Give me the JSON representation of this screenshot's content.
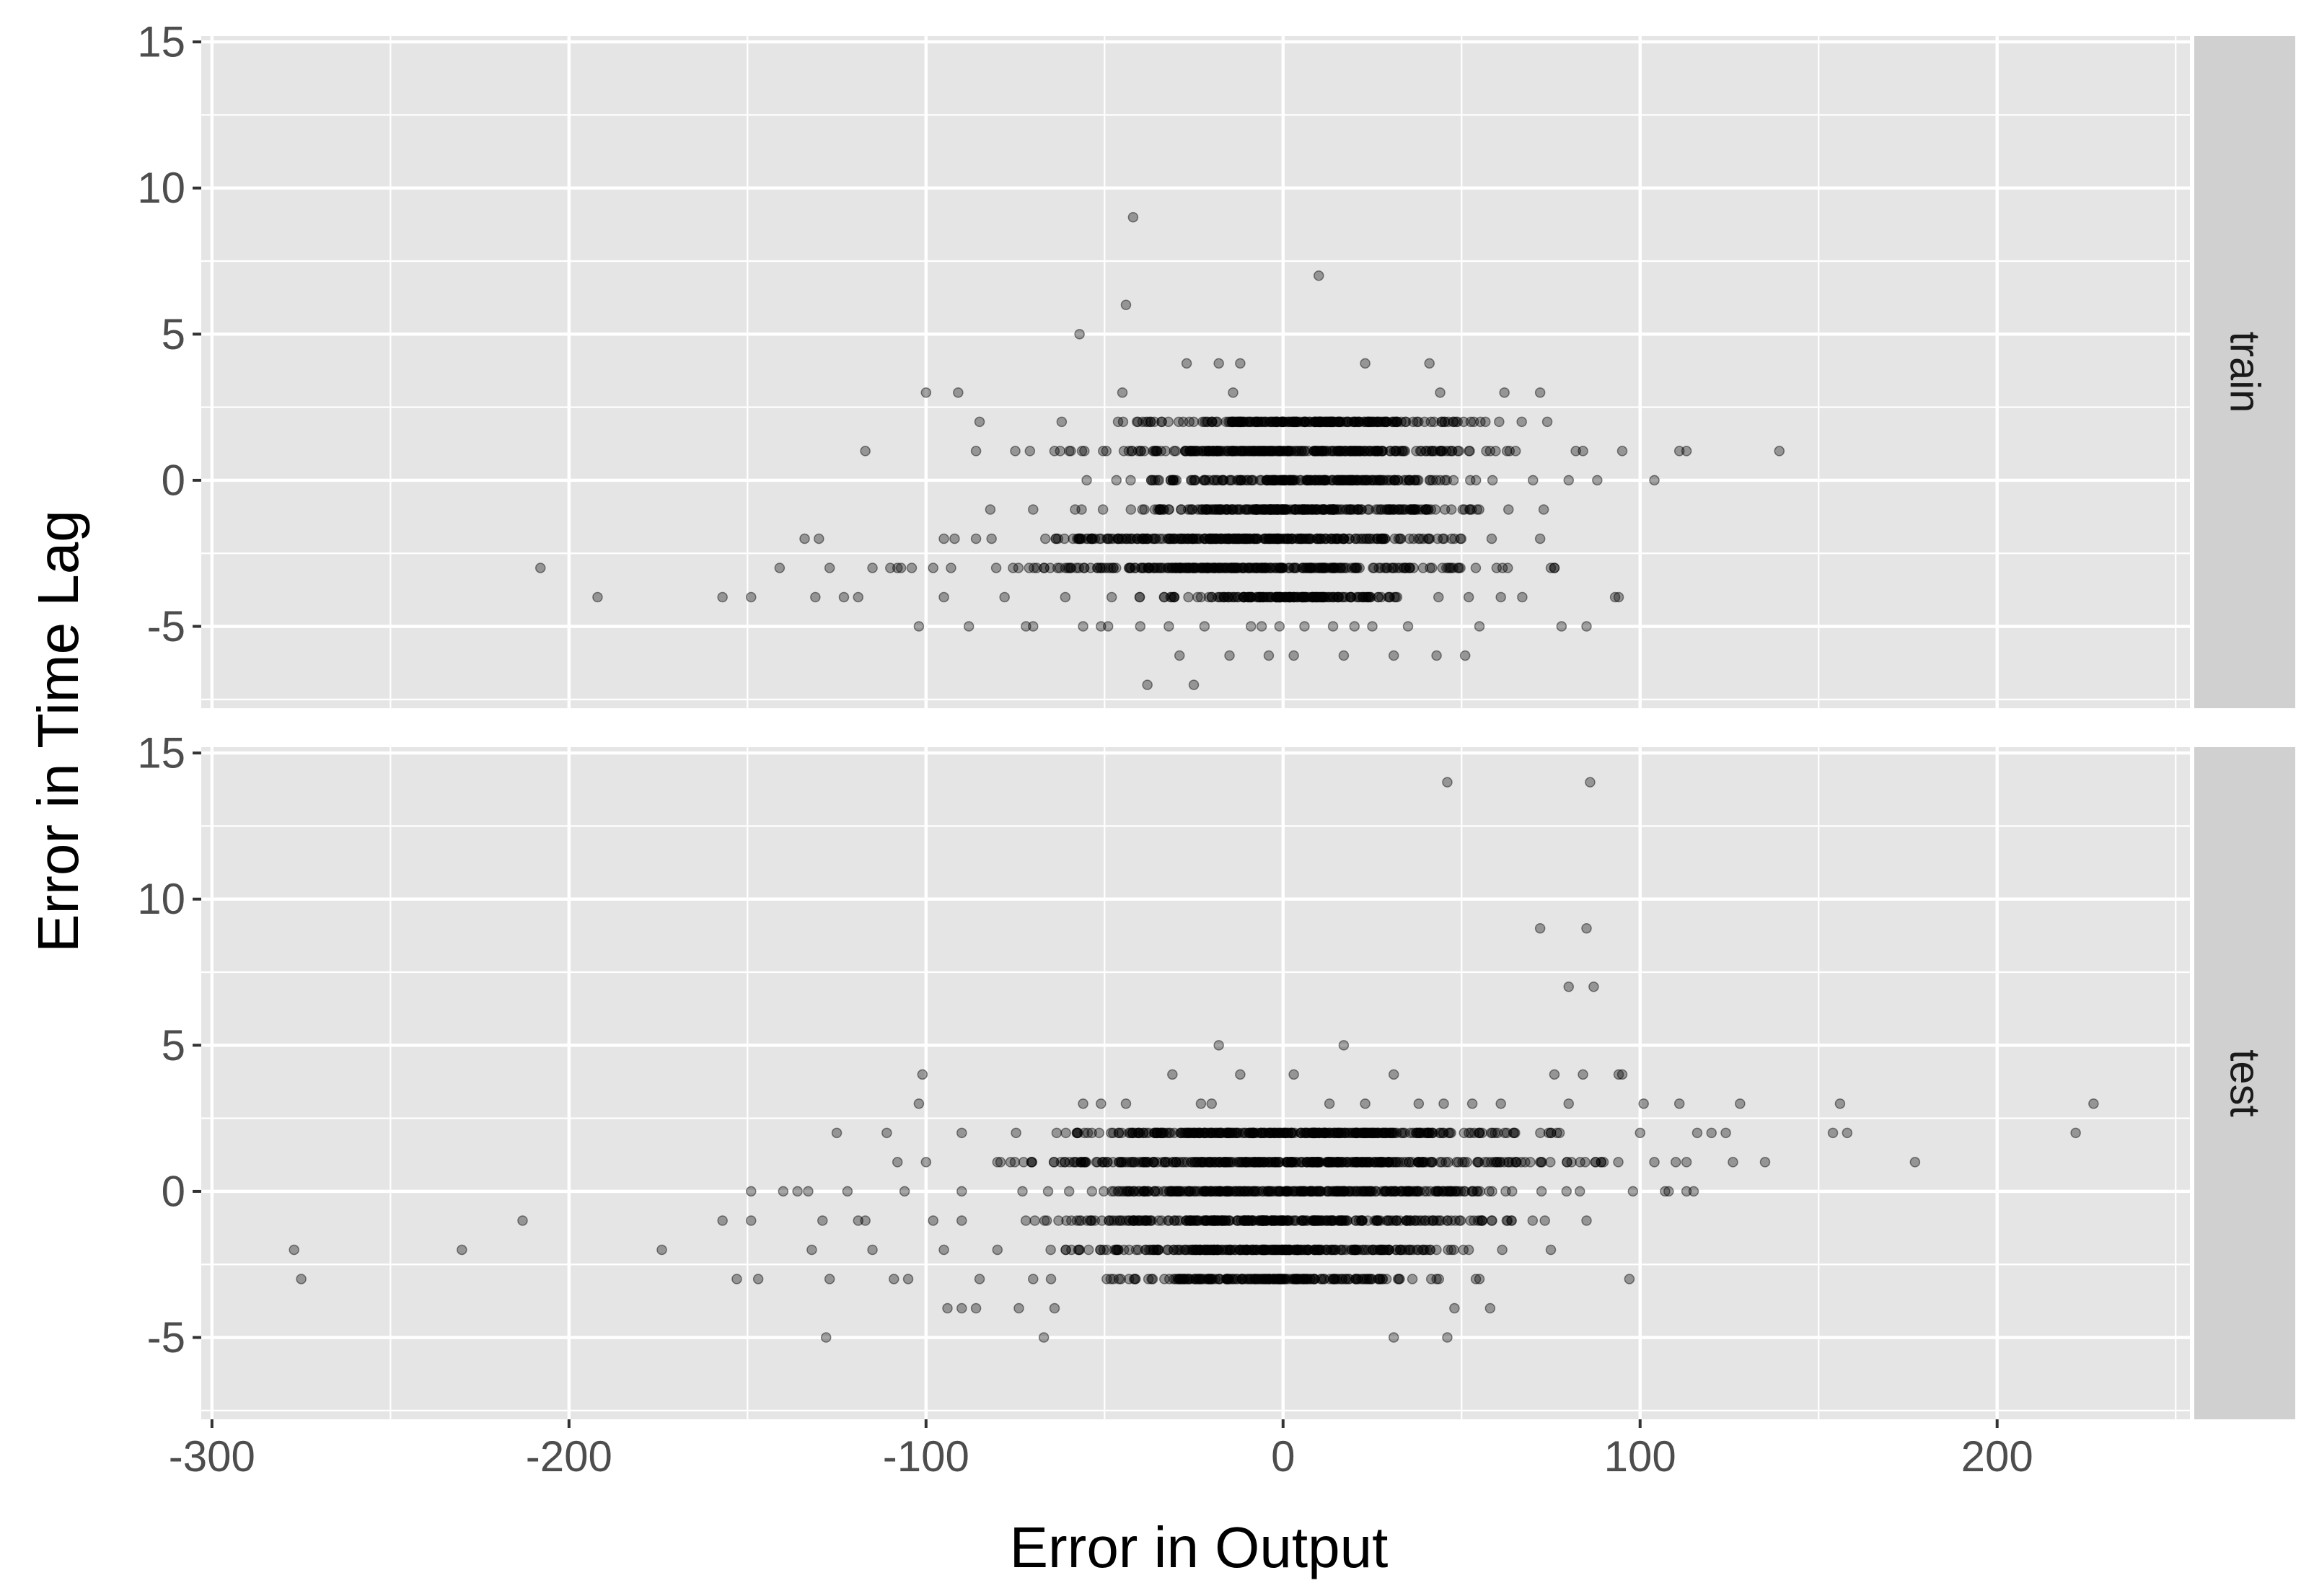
{
  "colors": {
    "panel_background": "#e5e5e5",
    "grid": "#ffffff",
    "strip_background": "#d0d0d0",
    "point": "#000000"
  },
  "chart_data": {
    "type": "scatter",
    "facets": "rows",
    "xlabel": "Error in Output",
    "ylabel": "Error in Time Lag",
    "xlim": [
      -303,
      254
    ],
    "ylim": [
      -7.8,
      15.2
    ],
    "x_ticks": [
      -300,
      -200,
      -100,
      0,
      100,
      200
    ],
    "x_tick_labels": [
      "-300",
      "-200",
      "-100",
      "0",
      "100",
      "200"
    ],
    "y_ticks": [
      -5,
      0,
      5,
      10,
      15
    ],
    "y_tick_labels": [
      "-5",
      "0",
      "5",
      "10",
      "15"
    ],
    "grid": true,
    "point_alpha": 0.35,
    "panels": [
      {
        "strip_label": "train",
        "outlier_points": [
          [
            -208,
            -3
          ],
          [
            -192,
            -4
          ],
          [
            -157,
            -4
          ],
          [
            -149,
            -4
          ],
          [
            -141,
            -3
          ],
          [
            -134,
            -2
          ],
          [
            -131,
            -4
          ],
          [
            -130,
            -2
          ],
          [
            -127,
            -3
          ],
          [
            -123,
            -4
          ],
          [
            -119,
            -4
          ],
          [
            -117,
            1
          ],
          [
            -115,
            -3
          ],
          [
            -110,
            -3
          ],
          [
            -108,
            -3
          ],
          [
            -107,
            -3
          ],
          [
            -104,
            -3
          ],
          [
            -102,
            -5
          ],
          [
            -100,
            3
          ],
          [
            -98,
            -3
          ],
          [
            -95,
            -4
          ],
          [
            -92,
            -2
          ],
          [
            -91,
            3
          ],
          [
            -88,
            -5
          ],
          [
            -86,
            -2
          ],
          [
            -85,
            2
          ],
          [
            -86,
            1
          ],
          [
            -82,
            -1
          ],
          [
            -78,
            -4
          ],
          [
            -72,
            -5
          ],
          [
            -70,
            -5
          ],
          [
            -61,
            -4
          ],
          [
            -57,
            5
          ],
          [
            -56,
            -5
          ],
          [
            -51,
            -5
          ],
          [
            -49,
            -5
          ],
          [
            -45,
            3
          ],
          [
            -44,
            6
          ],
          [
            -42,
            9
          ],
          [
            -40,
            -5
          ],
          [
            -38,
            -7
          ],
          [
            -32,
            -5
          ],
          [
            -29,
            -6
          ],
          [
            -27,
            4
          ],
          [
            -25,
            -7
          ],
          [
            -22,
            -5
          ],
          [
            -18,
            4
          ],
          [
            -15,
            -6
          ],
          [
            -14,
            3
          ],
          [
            -12,
            4
          ],
          [
            -9,
            -5
          ],
          [
            -6,
            -5
          ],
          [
            -4,
            -6
          ],
          [
            -1,
            -5
          ],
          [
            3,
            -6
          ],
          [
            6,
            -5
          ],
          [
            10,
            7
          ],
          [
            14,
            -5
          ],
          [
            17,
            -6
          ],
          [
            20,
            -5
          ],
          [
            23,
            4
          ],
          [
            25,
            -5
          ],
          [
            31,
            -6
          ],
          [
            35,
            -5
          ],
          [
            41,
            4
          ],
          [
            43,
            -6
          ],
          [
            44,
            3
          ],
          [
            51,
            -6
          ],
          [
            55,
            -5
          ],
          [
            61,
            -4
          ],
          [
            62,
            3
          ],
          [
            67,
            -4
          ],
          [
            72,
            3
          ],
          [
            75,
            -3
          ],
          [
            76,
            -3
          ],
          [
            78,
            -5
          ],
          [
            80,
            0
          ],
          [
            84,
            1
          ],
          [
            85,
            -5
          ],
          [
            88,
            0
          ],
          [
            93,
            -4
          ],
          [
            94,
            -4
          ],
          [
            95,
            1
          ],
          [
            104,
            0
          ],
          [
            111,
            1
          ],
          [
            113,
            1
          ],
          [
            139,
            1
          ]
        ],
        "bands": [
          {
            "y": 2,
            "x_from": -62,
            "x_to": 74
          },
          {
            "y": 1,
            "x_from": -75,
            "x_to": 82
          },
          {
            "y": 0,
            "x_from": -55,
            "x_to": 70
          },
          {
            "y": -1,
            "x_from": -70,
            "x_to": 73
          },
          {
            "y": -2,
            "x_from": -95,
            "x_to": 72
          },
          {
            "y": -3,
            "x_from": -93,
            "x_to": 76
          },
          {
            "y": -4,
            "x_from": -48,
            "x_to": 52
          }
        ]
      },
      {
        "strip_label": "test",
        "outlier_points": [
          [
            -277,
            -2
          ],
          [
            -275,
            -3
          ],
          [
            -230,
            -2
          ],
          [
            -213,
            -1
          ],
          [
            -174,
            -2
          ],
          [
            -157,
            -1
          ],
          [
            -153,
            -3
          ],
          [
            -149,
            0
          ],
          [
            -149,
            -1
          ],
          [
            -147,
            -3
          ],
          [
            -140,
            0
          ],
          [
            -136,
            0
          ],
          [
            -133,
            0
          ],
          [
            -132,
            -2
          ],
          [
            -129,
            -1
          ],
          [
            -128,
            -5
          ],
          [
            -127,
            -3
          ],
          [
            -125,
            2
          ],
          [
            -122,
            0
          ],
          [
            -119,
            -1
          ],
          [
            -117,
            -1
          ],
          [
            -115,
            -2
          ],
          [
            -111,
            2
          ],
          [
            -109,
            -3
          ],
          [
            -108,
            1
          ],
          [
            -106,
            0
          ],
          [
            -105,
            -3
          ],
          [
            -102,
            3
          ],
          [
            -101,
            4
          ],
          [
            -98,
            -1
          ],
          [
            -95,
            -2
          ],
          [
            -94,
            -4
          ],
          [
            -90,
            -4
          ],
          [
            -86,
            -4
          ],
          [
            -85,
            -3
          ],
          [
            -80,
            1
          ],
          [
            -74,
            -4
          ],
          [
            -70,
            -3
          ],
          [
            -67,
            -5
          ],
          [
            -64,
            -4
          ],
          [
            -56,
            3
          ],
          [
            -51,
            3
          ],
          [
            -44,
            3
          ],
          [
            -31,
            4
          ],
          [
            -23,
            3
          ],
          [
            -20,
            3
          ],
          [
            -18,
            5
          ],
          [
            -12,
            4
          ],
          [
            3,
            4
          ],
          [
            13,
            3
          ],
          [
            17,
            5
          ],
          [
            23,
            3
          ],
          [
            31,
            4
          ],
          [
            31,
            -5
          ],
          [
            38,
            3
          ],
          [
            43,
            -3
          ],
          [
            45,
            3
          ],
          [
            46,
            -5
          ],
          [
            46,
            14
          ],
          [
            48,
            -4
          ],
          [
            53,
            3
          ],
          [
            54,
            -3
          ],
          [
            58,
            -4
          ],
          [
            61,
            3
          ],
          [
            72,
            9
          ],
          [
            75,
            2
          ],
          [
            76,
            4
          ],
          [
            80,
            3
          ],
          [
            80,
            7
          ],
          [
            84,
            4
          ],
          [
            85,
            9
          ],
          [
            86,
            14
          ],
          [
            87,
            7
          ],
          [
            94,
            4
          ],
          [
            95,
            4
          ],
          [
            97,
            -3
          ],
          [
            101,
            3
          ],
          [
            104,
            1
          ],
          [
            107,
            0
          ],
          [
            108,
            0
          ],
          [
            111,
            3
          ],
          [
            113,
            1
          ],
          [
            113,
            0
          ],
          [
            115,
            0
          ],
          [
            116,
            2
          ],
          [
            120,
            2
          ],
          [
            124,
            2
          ],
          [
            126,
            1
          ],
          [
            128,
            3
          ],
          [
            135,
            1
          ],
          [
            154,
            2
          ],
          [
            156,
            3
          ],
          [
            158,
            2
          ],
          [
            177,
            1
          ],
          [
            222,
            2
          ],
          [
            227,
            3
          ]
        ],
        "bands": [
          {
            "y": 2,
            "x_from": -90,
            "x_to": 100
          },
          {
            "y": 1,
            "x_from": -100,
            "x_to": 110
          },
          {
            "y": 0,
            "x_from": -90,
            "x_to": 98
          },
          {
            "y": -1,
            "x_from": -90,
            "x_to": 85
          },
          {
            "y": -2,
            "x_from": -80,
            "x_to": 75
          },
          {
            "y": -3,
            "x_from": -65,
            "x_to": 55
          }
        ]
      }
    ]
  }
}
